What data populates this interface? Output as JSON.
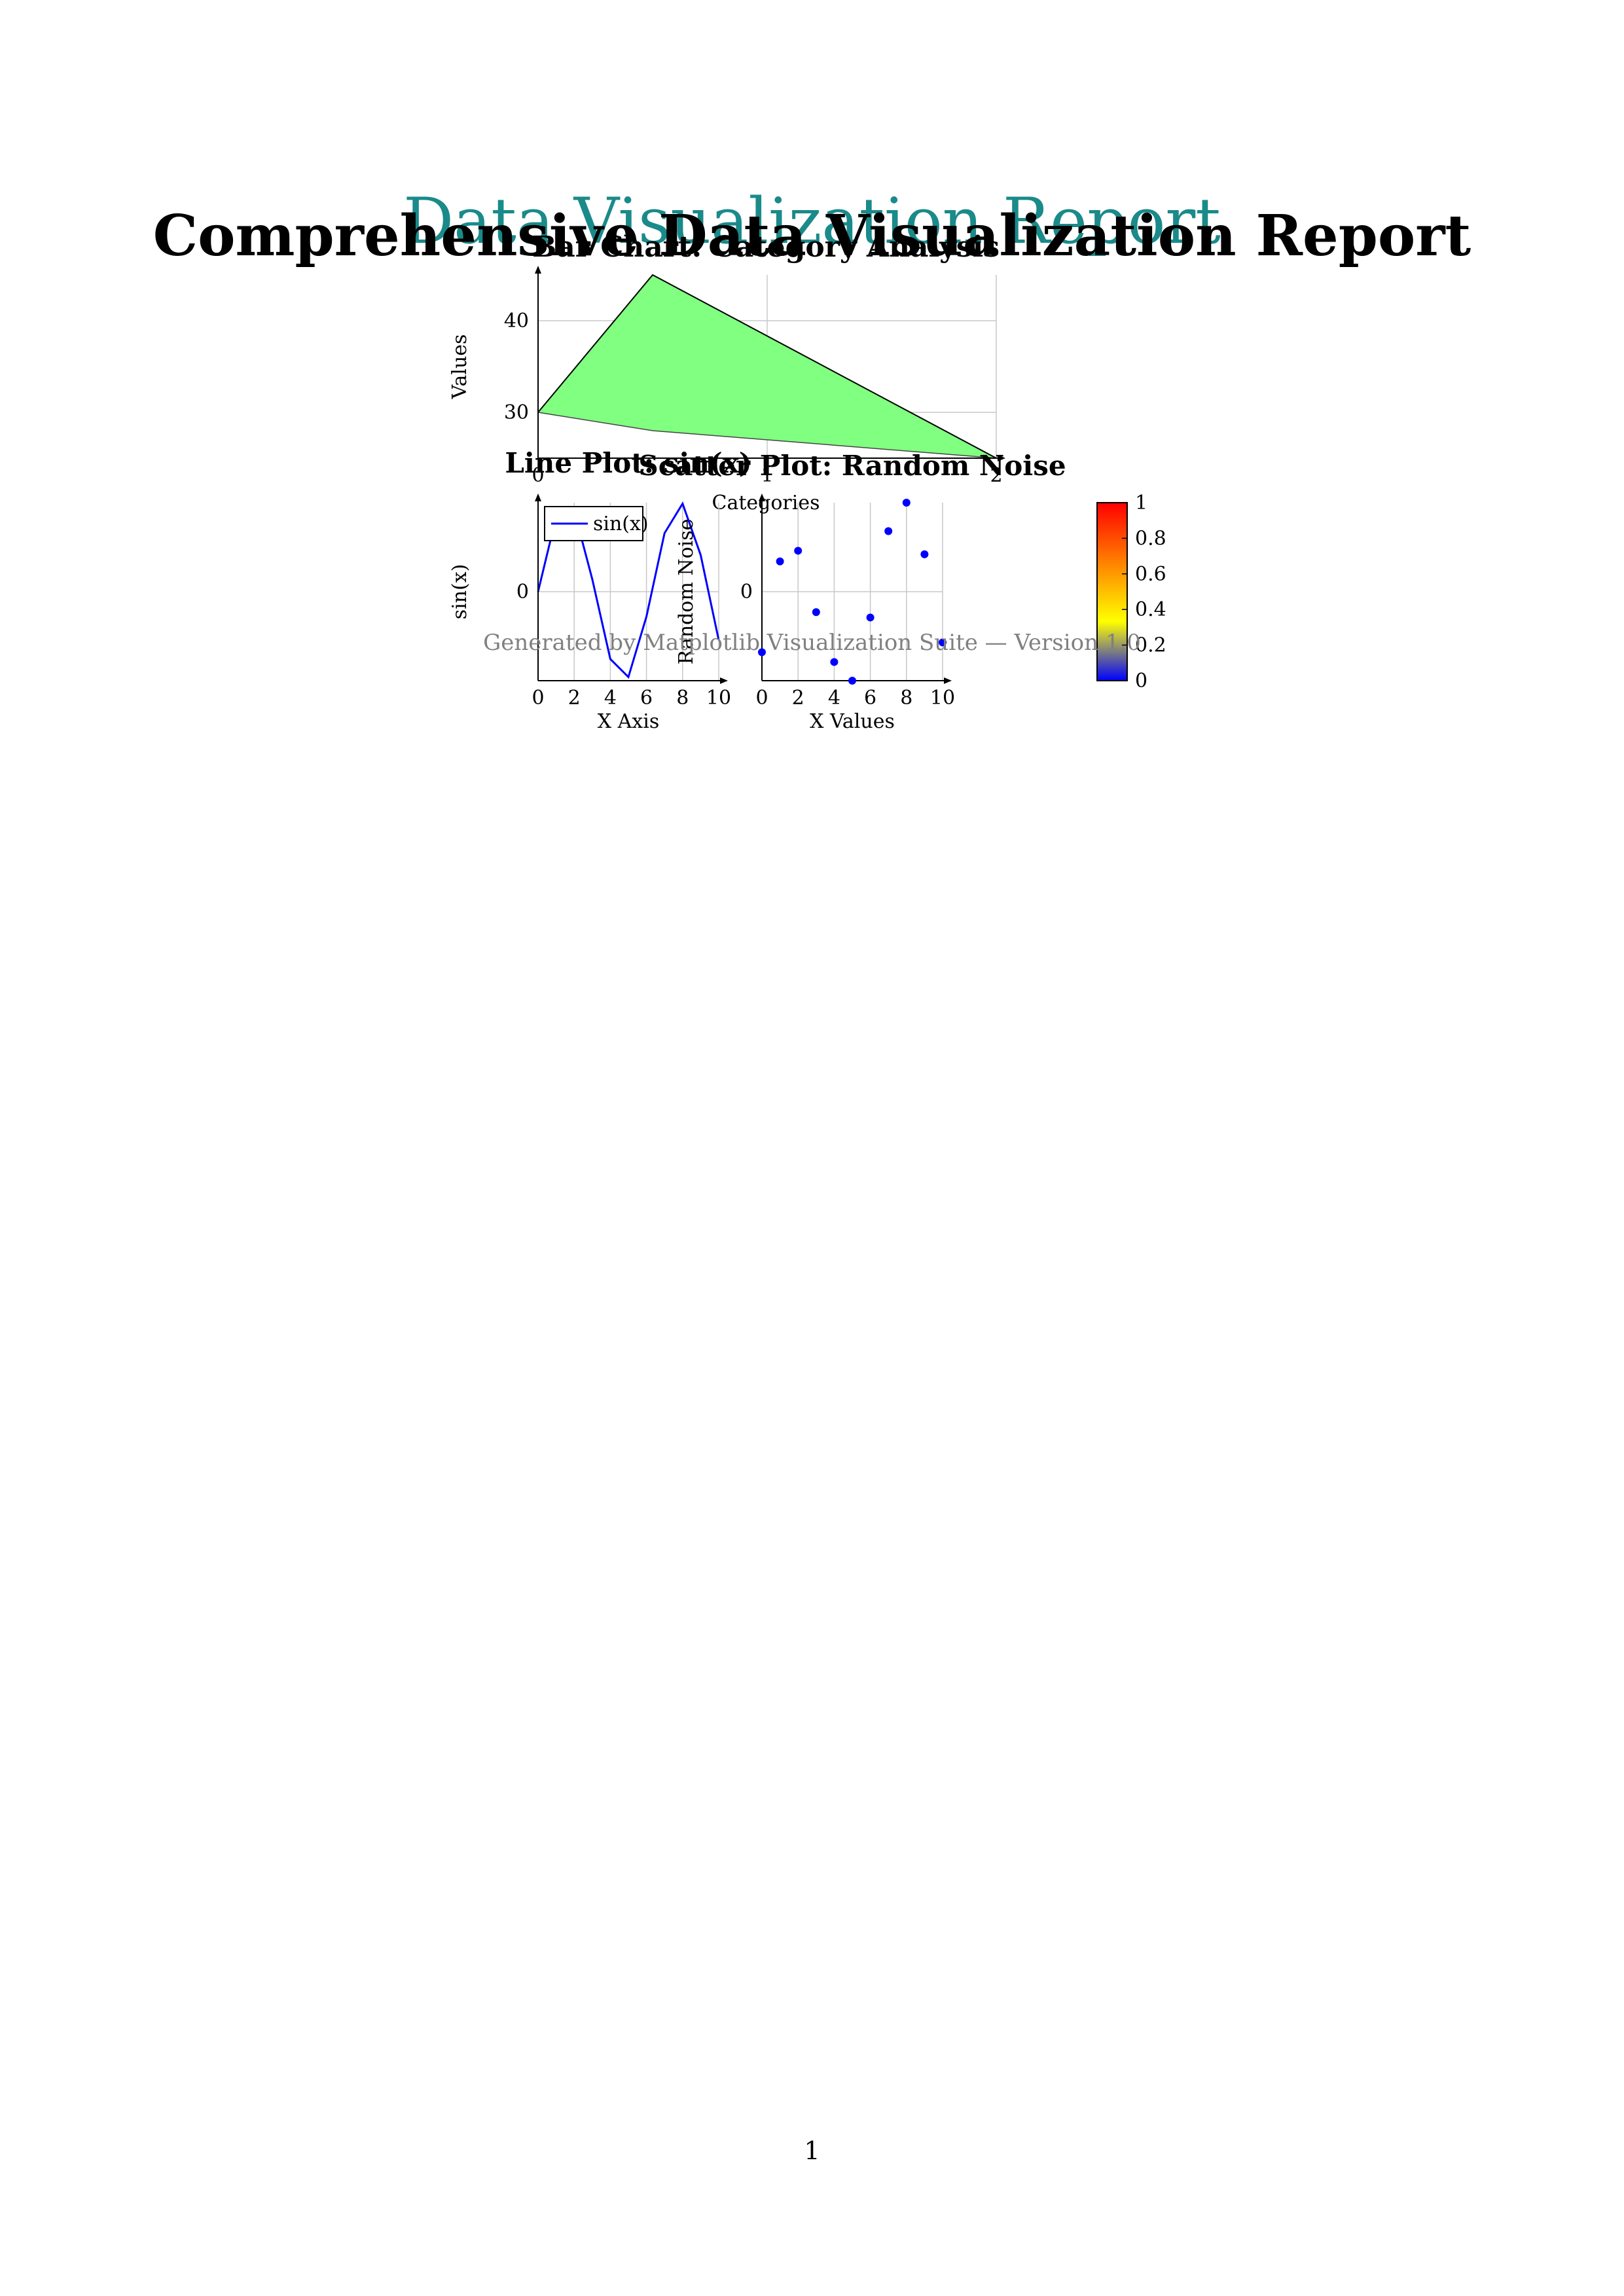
{
  "page": {
    "overlay_title": "Data Visualization Report",
    "main_title": "Comprehensive Data Visualization Report",
    "footer_note": "Generated by Matplotlib Visualization Suite — Version 1.0",
    "page_number": "1"
  },
  "colors": {
    "teal_title": "#1a8a8a",
    "area_fill": "#80ff80",
    "series_blue": "#0000ff",
    "grid": "#c8c8c8",
    "footer_gray": "#808080"
  },
  "chart_data": [
    {
      "type": "area",
      "title": "Bar Chart: Category Analysis",
      "xlabel": "Categories",
      "ylabel": "Values",
      "x": [
        0,
        0.5,
        2
      ],
      "upper": [
        30,
        45,
        25
      ],
      "lower": [
        30,
        28,
        25
      ],
      "xlim": [
        0,
        2
      ],
      "ylim": [
        25,
        45
      ],
      "xticks": [
        "0",
        "1",
        "2"
      ],
      "yticks": [
        "30",
        "40"
      ],
      "fill_color": "#80ff80",
      "grid": true
    },
    {
      "type": "line",
      "title": "Line Plot: sin(x)",
      "xlabel": "X Axis",
      "ylabel": "sin(x)",
      "x": [
        0,
        1,
        2,
        3,
        4,
        5,
        6,
        7,
        8,
        9,
        10
      ],
      "series": [
        {
          "name": "sin(x)",
          "color": "#0000ff",
          "values": [
            0,
            0.841,
            0.909,
            0.141,
            -0.757,
            -0.959,
            -0.279,
            0.657,
            0.989,
            0.412,
            -0.544
          ]
        }
      ],
      "xlim": [
        0,
        10
      ],
      "ylim": [
        -1,
        1
      ],
      "xticks": [
        "0",
        "2",
        "4",
        "6",
        "8",
        "10"
      ],
      "yticks": [
        "0"
      ],
      "legend": "top-left",
      "grid": true
    },
    {
      "type": "scatter",
      "title": "Scatter Plot: Random Noise",
      "xlabel": "X Values",
      "ylabel": "Random Noise",
      "x": [
        0,
        1,
        2,
        3,
        4,
        5,
        6,
        7,
        8,
        9,
        10
      ],
      "y": [
        -0.68,
        0.34,
        0.46,
        -0.23,
        -0.79,
        -1.0,
        -0.29,
        0.68,
        1.0,
        0.42,
        -0.57
      ],
      "color": "#0000ff",
      "xlim": [
        0,
        10
      ],
      "ylim": [
        -1,
        1
      ],
      "xticks": [
        "0",
        "2",
        "4",
        "6",
        "8",
        "10"
      ],
      "yticks": [
        "0"
      ],
      "grid": true,
      "colorbar": {
        "ticks": [
          "0",
          "0.2",
          "0.4",
          "0.6",
          "0.8",
          "1"
        ],
        "colors": [
          "#0000ff",
          "#ffff00",
          "#ff8000",
          "#ff0000"
        ]
      }
    }
  ]
}
